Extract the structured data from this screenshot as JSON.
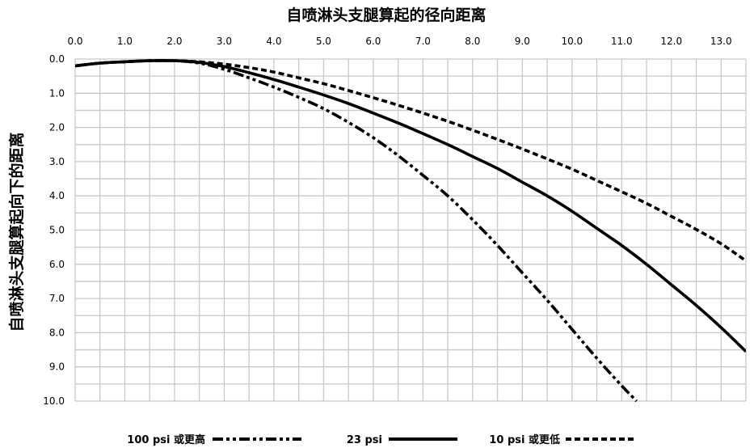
{
  "chart_data": {
    "type": "line",
    "title": "",
    "xlabel": "自喷淋头支腿算起的径向距离",
    "ylabel": "自喷淋头支腿算起向下的距离",
    "x_axis_position": "top",
    "y_axis_inverted": true,
    "xlim": [
      0,
      13.5
    ],
    "ylim": [
      0,
      10
    ],
    "x_ticks": [
      "0.0",
      "1.0",
      "2.0",
      "3.0",
      "4.0",
      "5.0",
      "6.0",
      "7.0",
      "8.0",
      "9.0",
      "10.0",
      "11.0",
      "12.0",
      "13.0"
    ],
    "y_ticks": [
      "0.0",
      "1.0",
      "2.0",
      "3.0",
      "4.0",
      "5.0",
      "6.0",
      "7.0",
      "8.0",
      "9.0",
      "10.0"
    ],
    "grid": true,
    "legend_position": "bottom",
    "series": [
      {
        "name": "100 psi 或更高",
        "line_style": "dash-dot-dot",
        "color": "#000000",
        "points": [
          [
            0,
            0.2
          ],
          [
            0.5,
            0.12
          ],
          [
            1.0,
            0.08
          ],
          [
            1.5,
            0.05
          ],
          [
            2.0,
            0.05
          ],
          [
            2.5,
            0.12
          ],
          [
            3.0,
            0.3
          ],
          [
            3.5,
            0.55
          ],
          [
            4.0,
            0.82
          ],
          [
            4.5,
            1.12
          ],
          [
            5.0,
            1.45
          ],
          [
            5.5,
            1.85
          ],
          [
            6.0,
            2.3
          ],
          [
            6.5,
            2.82
          ],
          [
            7.0,
            3.4
          ],
          [
            7.5,
            4.0
          ],
          [
            8.0,
            4.7
          ],
          [
            8.5,
            5.45
          ],
          [
            9.0,
            6.25
          ],
          [
            9.5,
            7.05
          ],
          [
            10.0,
            7.9
          ],
          [
            10.5,
            8.75
          ],
          [
            11.0,
            9.55
          ],
          [
            11.3,
            10.0
          ]
        ]
      },
      {
        "name": "23 psi",
        "line_style": "solid",
        "color": "#000000",
        "points": [
          [
            0,
            0.2
          ],
          [
            0.5,
            0.12
          ],
          [
            1.0,
            0.08
          ],
          [
            1.5,
            0.05
          ],
          [
            2.0,
            0.05
          ],
          [
            2.5,
            0.1
          ],
          [
            3.0,
            0.22
          ],
          [
            3.5,
            0.4
          ],
          [
            4.0,
            0.6
          ],
          [
            4.5,
            0.82
          ],
          [
            5.0,
            1.05
          ],
          [
            5.5,
            1.3
          ],
          [
            6.0,
            1.58
          ],
          [
            6.5,
            1.87
          ],
          [
            7.0,
            2.18
          ],
          [
            7.5,
            2.5
          ],
          [
            8.0,
            2.85
          ],
          [
            8.5,
            3.2
          ],
          [
            9.0,
            3.6
          ],
          [
            9.5,
            4.0
          ],
          [
            10.0,
            4.45
          ],
          [
            10.5,
            4.95
          ],
          [
            11.0,
            5.45
          ],
          [
            11.5,
            6.0
          ],
          [
            12.0,
            6.6
          ],
          [
            12.5,
            7.2
          ],
          [
            13.0,
            7.85
          ],
          [
            13.5,
            8.55
          ]
        ]
      },
      {
        "name": "10 psi 或更低",
        "line_style": "dashed",
        "color": "#000000",
        "points": [
          [
            0,
            0.2
          ],
          [
            0.5,
            0.12
          ],
          [
            1.0,
            0.08
          ],
          [
            1.5,
            0.05
          ],
          [
            2.0,
            0.05
          ],
          [
            2.5,
            0.08
          ],
          [
            3.0,
            0.15
          ],
          [
            3.5,
            0.25
          ],
          [
            4.0,
            0.38
          ],
          [
            4.5,
            0.55
          ],
          [
            5.0,
            0.72
          ],
          [
            5.5,
            0.92
          ],
          [
            6.0,
            1.13
          ],
          [
            6.5,
            1.35
          ],
          [
            7.0,
            1.58
          ],
          [
            7.5,
            1.82
          ],
          [
            8.0,
            2.08
          ],
          [
            8.5,
            2.35
          ],
          [
            9.0,
            2.63
          ],
          [
            9.5,
            2.92
          ],
          [
            10.0,
            3.22
          ],
          [
            10.5,
            3.55
          ],
          [
            11.0,
            3.88
          ],
          [
            11.5,
            4.22
          ],
          [
            12.0,
            4.6
          ],
          [
            12.5,
            4.98
          ],
          [
            13.0,
            5.4
          ],
          [
            13.5,
            5.9
          ]
        ]
      }
    ]
  }
}
